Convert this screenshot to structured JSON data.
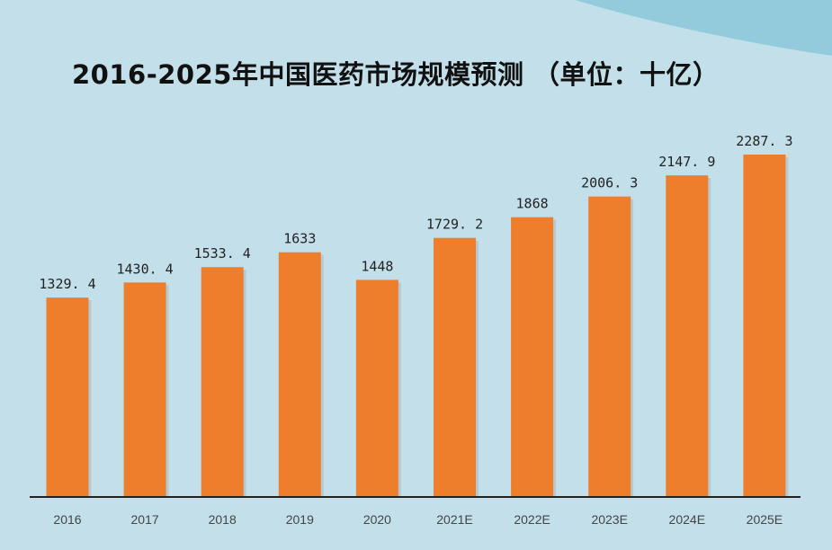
{
  "chart_data": {
    "type": "bar",
    "title": "2016-2025年中国医药市场规模预测 （单位：十亿）",
    "categories": [
      "2016",
      "2017",
      "2018",
      "2019",
      "2020",
      "2021E",
      "2022E",
      "2023E",
      "2024E",
      "2025E"
    ],
    "values": [
      1329.4,
      1430.4,
      1533.4,
      1633,
      1448,
      1729.2,
      1868,
      2006.3,
      2147.9,
      2287.3
    ],
    "value_labels": [
      "1329. 4",
      "1430. 4",
      "1533. 4",
      "1633",
      "1448",
      "1729. 2",
      "1868",
      "2006. 3",
      "2147. 9",
      "2287. 3"
    ],
    "xlabel": "",
    "ylabel": "",
    "ylim": [
      0,
      2287.3
    ],
    "grid": false,
    "legend": "none"
  },
  "colors": {
    "background": "#c3e0ea",
    "corner_accent": "#93cbdc",
    "bar": "#ee7d2c",
    "bar_shadow": "#a8b8bf",
    "axis": "#222222"
  }
}
